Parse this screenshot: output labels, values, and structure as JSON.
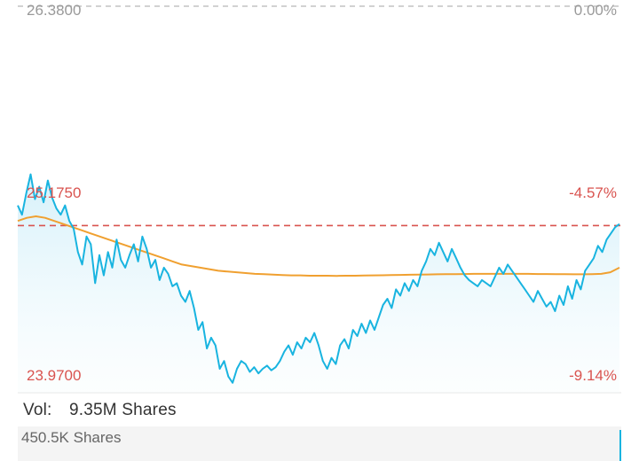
{
  "chart_data": {
    "type": "line",
    "y_left_ticks": [
      "26.3800",
      "25.1750",
      "23.9700"
    ],
    "y_right_ticks": [
      "0.00%",
      "-4.57%",
      "-9.14%"
    ],
    "ylim": [
      23.97,
      26.38
    ],
    "reference_line": {
      "value": 24.97,
      "style": "dashed",
      "color": "#d9534f"
    },
    "colors": {
      "price": "#19b4e0",
      "average": "#f0a030",
      "reference": "#d9534f",
      "tick_top": "#999999",
      "tick_red": "#d9534f"
    },
    "series": [
      {
        "values": [
          25.1,
          25.04,
          25.18,
          25.3,
          25.14,
          25.22,
          25.12,
          25.26,
          25.15,
          25.08,
          25.04,
          25.1,
          25.0,
          24.95,
          24.8,
          24.72,
          24.9,
          24.85,
          24.6,
          24.78,
          24.65,
          24.8,
          24.7,
          24.88,
          24.75,
          24.7,
          24.78,
          24.85,
          24.74,
          24.9,
          24.82,
          24.7,
          24.75,
          24.62,
          24.7,
          24.66,
          24.58,
          24.6,
          24.52,
          24.48,
          24.55,
          24.44,
          24.3,
          24.35,
          24.18,
          24.25,
          24.2,
          24.05,
          24.1,
          24.0,
          23.96,
          24.05,
          24.1,
          24.08,
          24.03,
          24.06,
          24.02,
          24.05,
          24.07,
          24.04,
          24.06,
          24.1,
          24.16,
          24.2,
          24.14,
          24.22,
          24.18,
          24.25,
          24.22,
          24.28,
          24.2,
          24.1,
          24.05,
          24.12,
          24.08,
          24.2,
          24.24,
          24.18,
          24.3,
          24.26,
          24.34,
          24.28,
          24.36,
          24.3,
          24.38,
          24.46,
          24.5,
          24.44,
          24.56,
          24.52,
          24.6,
          24.55,
          24.62,
          24.58,
          24.68,
          24.74,
          24.82,
          24.78,
          24.86,
          24.8,
          24.74,
          24.82,
          24.76,
          24.7,
          24.65,
          24.62,
          24.6,
          24.58,
          24.62,
          24.6,
          24.58,
          24.64,
          24.7,
          24.66,
          24.72,
          24.68,
          24.64,
          24.6,
          24.56,
          24.52,
          24.48,
          24.55,
          24.5,
          24.45,
          24.48,
          24.42,
          24.52,
          24.46,
          24.58,
          24.5,
          24.62,
          24.56,
          24.68,
          24.72,
          24.76,
          24.84,
          24.8,
          24.88,
          24.92,
          24.96,
          24.98
        ]
      },
      {
        "values": [
          25.0,
          25.02,
          25.03,
          25.02,
          25.0,
          24.98,
          24.96,
          24.94,
          24.92,
          24.9,
          24.88,
          24.86,
          24.84,
          24.82,
          24.8,
          24.78,
          24.76,
          24.74,
          24.72,
          24.71,
          24.7,
          24.69,
          24.68,
          24.675,
          24.67,
          24.665,
          24.66,
          24.658,
          24.655,
          24.652,
          24.65,
          24.65,
          24.648,
          24.648,
          24.648,
          24.647,
          24.648,
          24.648,
          24.649,
          24.65,
          24.651,
          24.652,
          24.653,
          24.654,
          24.655,
          24.656,
          24.657,
          24.658,
          24.658,
          24.659,
          24.66,
          24.66,
          24.66,
          24.66,
          24.66,
          24.66,
          24.66,
          24.659,
          24.659,
          24.658,
          24.658,
          24.657,
          24.657,
          24.658,
          24.66,
          24.67,
          24.7
        ]
      }
    ]
  },
  "volume": {
    "label": "Vol:",
    "value": "9.35M Shares",
    "axis_label": "450.5K Shares"
  }
}
